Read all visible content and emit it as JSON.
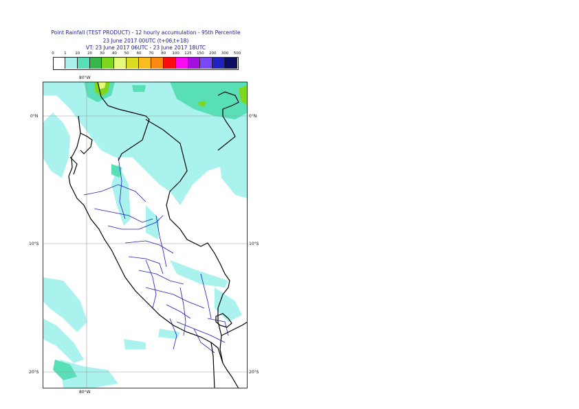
{
  "title": {
    "line1": "Point Rainfall (TEST PRODUCT) - 12 hourly accumulation - 95th Percentile",
    "line2": "23 June 2017 00UTC (t+06,t+18)",
    "line3": "VT: 23 June 2017 06UTC - 23 June 2017 18UTC"
  },
  "legend": {
    "ticks": [
      "0",
      "1",
      "10",
      "20",
      "30",
      "40",
      "50",
      "60",
      "70",
      "80",
      "100",
      "125",
      "150",
      "200",
      "300",
      "500"
    ],
    "colors": [
      "#ffffff",
      "#a9f2ee",
      "#58dfb7",
      "#38b84a",
      "#7fd71d",
      "#e6f97a",
      "#dcdd22",
      "#f9be1e",
      "#fb8a13",
      "#fb0c10",
      "#f70cf0",
      "#a20fe0",
      "#7848f8",
      "#2222be",
      "#0b0b63"
    ]
  },
  "map": {
    "lon_labels": {
      "top": "80°W",
      "bottom": "80°W"
    },
    "lat_labels": [
      "0°N",
      "10°S",
      "20°S"
    ]
  }
}
